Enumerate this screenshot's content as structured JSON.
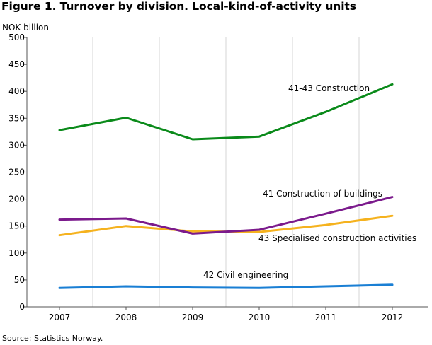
{
  "figure": {
    "title": "Figure 1. Turnover by division. Local-kind-of-activity units",
    "ylabel": "NOK billion",
    "source": "Source: Statistics Norway."
  },
  "chart_data": {
    "type": "line",
    "title": "Figure 1. Turnover by division. Local-kind-of-activity units",
    "xlabel": "",
    "ylabel": "NOK billion",
    "x": [
      "2007",
      "2008",
      "2009",
      "2010",
      "2011",
      "2012"
    ],
    "ylim": [
      0,
      500
    ],
    "yticks": [
      0,
      50,
      100,
      150,
      200,
      250,
      300,
      350,
      400,
      450,
      500
    ],
    "grid": "vertical",
    "legend": "inline labels",
    "series": [
      {
        "name": "41-43 Construction",
        "color": "#0a8a1a",
        "values": [
          328,
          351,
          311,
          316,
          362,
          413
        ]
      },
      {
        "name": "41 Construction of buildings",
        "color": "#7b1a8c",
        "values": [
          162,
          164,
          136,
          143,
          173,
          204
        ]
      },
      {
        "name": "43 Specialised construction activities",
        "color": "#f5b21e",
        "values": [
          133,
          150,
          140,
          139,
          152,
          169
        ]
      },
      {
        "name": "42 Civil engineering",
        "color": "#1a7fd4",
        "values": [
          35,
          38,
          36,
          35,
          38,
          41
        ]
      }
    ]
  }
}
